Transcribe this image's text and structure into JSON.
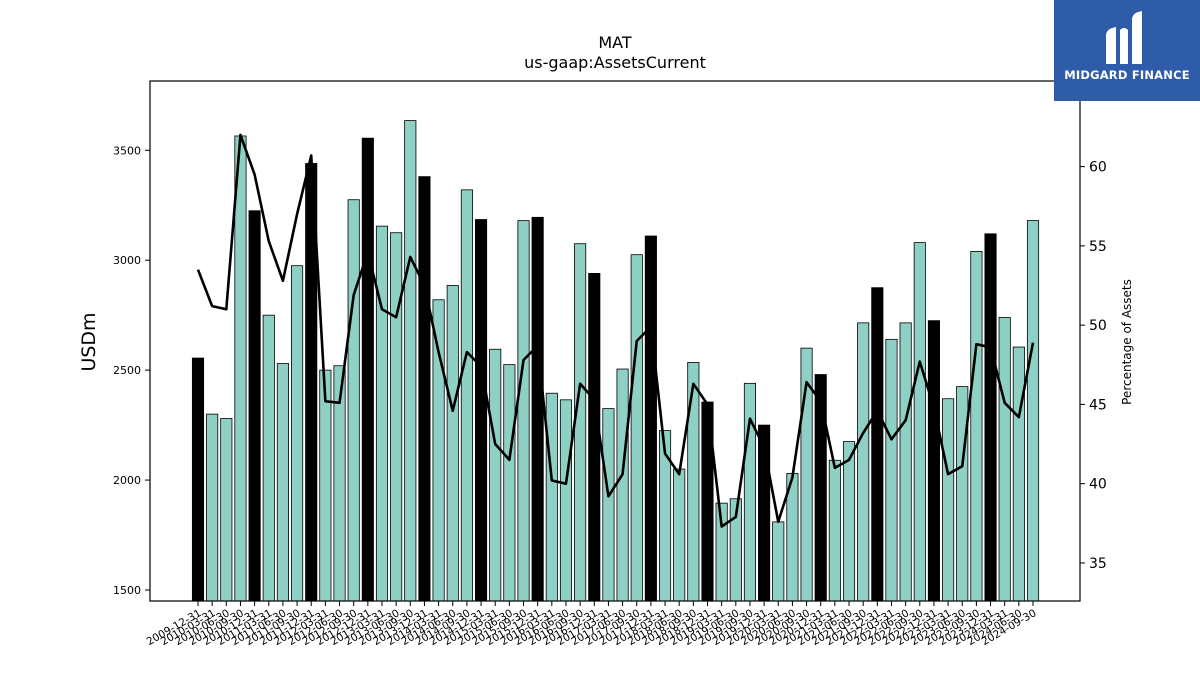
{
  "brand": {
    "name": "MIDGARD FINANCE",
    "logo_icon": "midgard-bars-logo-icon",
    "background": "#2f5ca8"
  },
  "chart_data": {
    "type": "bar",
    "title": "MAT",
    "subtitle": "us-gaap:AssetsCurrent",
    "ylabel": "USDm",
    "y2label": "Percentage of Assets",
    "ylim": [
      1450,
      3815
    ],
    "y2lim": [
      32.6,
      65.4
    ],
    "yticks": [
      1500,
      2000,
      2500,
      3000,
      3500
    ],
    "y2ticks": [
      35,
      40,
      45,
      50,
      55,
      60
    ],
    "bar_colors": {
      "fiscal_year_end": "#000000",
      "quarter": "#8fd0c4"
    },
    "line_color": "#000000",
    "categories": [
      "2009-12-31",
      "2010-03-31",
      "2010-06-30",
      "2010-09-30",
      "2010-12-31",
      "2011-03-31",
      "2011-06-30",
      "2011-09-30",
      "2011-12-31",
      "2012-03-31",
      "2012-06-30",
      "2012-09-30",
      "2012-12-31",
      "2013-03-31",
      "2013-06-30",
      "2013-09-30",
      "2013-12-31",
      "2014-03-31",
      "2014-06-30",
      "2014-09-30",
      "2014-12-31",
      "2015-03-31",
      "2015-06-30",
      "2015-09-30",
      "2015-12-31",
      "2016-03-31",
      "2016-06-30",
      "2016-09-30",
      "2016-12-31",
      "2017-03-31",
      "2017-06-30",
      "2017-09-30",
      "2017-12-31",
      "2018-03-31",
      "2018-06-30",
      "2018-09-30",
      "2018-12-31",
      "2019-03-31",
      "2019-06-30",
      "2019-09-30",
      "2019-12-31",
      "2020-03-31",
      "2020-06-30",
      "2020-09-30",
      "2020-12-31",
      "2021-03-31",
      "2021-06-30",
      "2021-09-30",
      "2021-12-31",
      "2022-03-31",
      "2022-06-30",
      "2022-09-30",
      "2022-12-31",
      "2023-03-31",
      "2023-06-30",
      "2023-09-30",
      "2023-12-31",
      "2024-03-31",
      "2024-06-30",
      "2024-09-30"
    ],
    "series": [
      {
        "values": [
          2555,
          2300,
          2280,
          3565,
          3225,
          2750,
          2530,
          2975,
          3440,
          2500,
          2520,
          3275,
          3555,
          3155,
          3125,
          3635,
          3380,
          2820,
          2885,
          3320,
          3185,
          2595,
          2525,
          3180,
          3195,
          2395,
          2365,
          3075,
          2940,
          2325,
          2505,
          3025,
          3110,
          2225,
          2050,
          2535,
          2355,
          1895,
          1915,
          2440,
          2250,
          1810,
          2030,
          2600,
          2480,
          2090,
          2175,
          2715,
          2875,
          2640,
          2715,
          3080,
          2725,
          2370,
          2425,
          3040,
          3120,
          2740,
          2605,
          3180
        ]
      },
      {
        "axis": "right",
        "values": [
          53.5,
          51.2,
          51.0,
          62.0,
          59.5,
          55.3,
          52.8,
          57.0,
          60.7,
          45.2,
          45.1,
          51.9,
          54.6,
          51.0,
          50.5,
          54.3,
          52.5,
          48.3,
          44.6,
          48.3,
          47.4,
          42.5,
          41.5,
          47.8,
          48.7,
          40.2,
          40.0,
          46.3,
          45.3,
          39.2,
          40.6,
          49.0,
          49.9,
          41.9,
          40.6,
          46.3,
          45.0,
          37.3,
          37.9,
          44.1,
          42.3,
          37.6,
          40.4,
          46.4,
          45.2,
          41.0,
          41.5,
          43.2,
          44.6,
          42.8,
          44.0,
          47.7,
          44.8,
          40.6,
          41.1,
          48.8,
          48.6,
          45.1,
          44.2,
          48.9
        ]
      }
    ]
  }
}
